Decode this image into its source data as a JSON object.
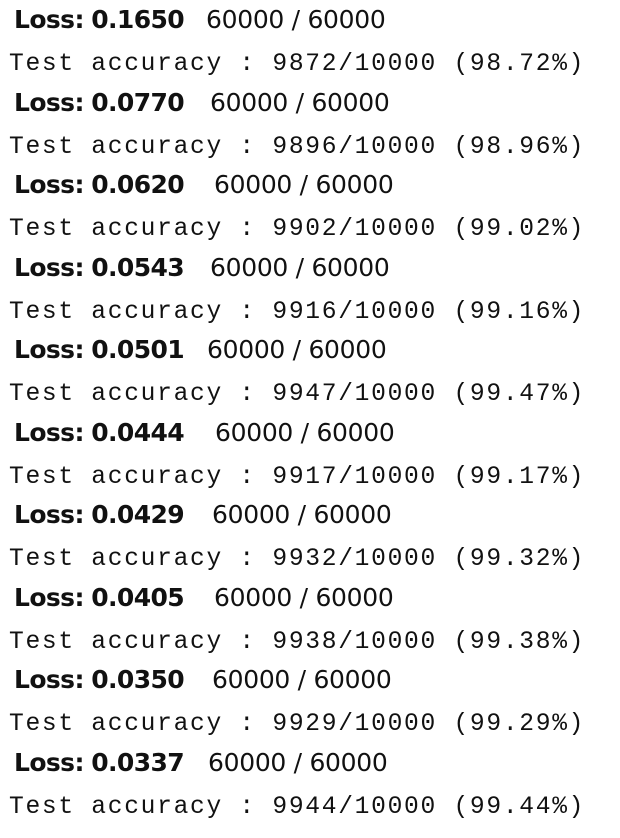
{
  "loss_label": "Loss:",
  "test_prefix": "Test accuracy :",
  "epochs": [
    {
      "loss": "0.1650",
      "progress": "60000 / 60000",
      "correct": "9872",
      "total": "10000",
      "percent": "(98.72%)"
    },
    {
      "loss": "0.0770",
      "progress": "60000 / 60000",
      "correct": "9896",
      "total": "10000",
      "percent": "(98.96%)"
    },
    {
      "loss": "0.0620",
      "progress": "60000 / 60000",
      "correct": "9902",
      "total": "10000",
      "percent": "(99.02%)"
    },
    {
      "loss": "0.0543",
      "progress": "60000 / 60000",
      "correct": "9916",
      "total": "10000",
      "percent": "(99.16%)"
    },
    {
      "loss": "0.0501",
      "progress": "60000 / 60000",
      "correct": "9947",
      "total": "10000",
      "percent": "(99.47%)"
    },
    {
      "loss": "0.0444",
      "progress": "60000 / 60000",
      "correct": "9917",
      "total": "10000",
      "percent": "(99.17%)"
    },
    {
      "loss": "0.0429",
      "progress": "60000 / 60000",
      "correct": "9932",
      "total": "10000",
      "percent": "(99.32%)"
    },
    {
      "loss": "0.0405",
      "progress": "60000 / 60000",
      "correct": "9938",
      "total": "10000",
      "percent": "(99.38%)"
    },
    {
      "loss": "0.0350",
      "progress": "60000 / 60000",
      "correct": "9929",
      "total": "10000",
      "percent": "(99.29%)"
    },
    {
      "loss": "0.0337",
      "progress": "60000 / 60000",
      "correct": "9944",
      "total": "10000",
      "percent": "(99.44%)"
    }
  ]
}
